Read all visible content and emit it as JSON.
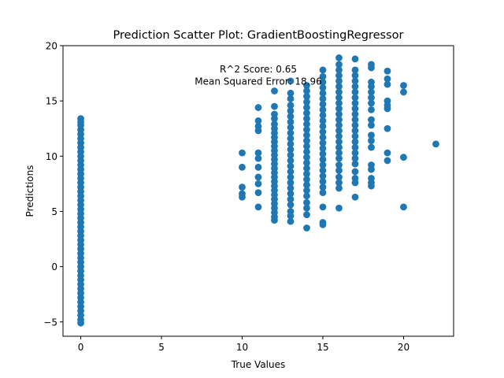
{
  "chart_data": {
    "type": "scatter",
    "title": "Prediction Scatter Plot: GradientBoostingRegressor",
    "xlabel": "True Values",
    "ylabel": "Predictions",
    "xlim": [
      -1.1,
      23.1
    ],
    "ylim": [
      -6.3,
      20.0
    ],
    "xticks": [
      0,
      5,
      10,
      15,
      20
    ],
    "yticks": [
      -5,
      0,
      5,
      10,
      15,
      20
    ],
    "grid": false,
    "legend": "none",
    "marker_color": "#1f77b4",
    "annotations": [
      {
        "text": "R^2 Score: 0.65",
        "x": 11,
        "y": 17.9
      },
      {
        "text": "Mean Squared Error: 18.96",
        "x": 11,
        "y": 16.8
      }
    ],
    "series": [
      {
        "points": [
          [
            0,
            13.4
          ],
          [
            0,
            13.1
          ],
          [
            0,
            12.8
          ],
          [
            0,
            12.4
          ],
          [
            0,
            12.0
          ],
          [
            0,
            11.6
          ],
          [
            0,
            11.2
          ],
          [
            0,
            10.8
          ],
          [
            0,
            10.4
          ],
          [
            0,
            10.0
          ],
          [
            0,
            9.6
          ],
          [
            0,
            9.2
          ],
          [
            0,
            8.8
          ],
          [
            0,
            8.4
          ],
          [
            0,
            8.0
          ],
          [
            0,
            7.6
          ],
          [
            0,
            7.2
          ],
          [
            0,
            6.8
          ],
          [
            0,
            6.4
          ],
          [
            0,
            6.0
          ],
          [
            0,
            5.6
          ],
          [
            0,
            5.2
          ],
          [
            0,
            4.8
          ],
          [
            0,
            4.4
          ],
          [
            0,
            4.0
          ],
          [
            0,
            3.6
          ],
          [
            0,
            3.2
          ],
          [
            0,
            2.8
          ],
          [
            0,
            2.4
          ],
          [
            0,
            2.0
          ],
          [
            0,
            1.6
          ],
          [
            0,
            1.2
          ],
          [
            0,
            0.8
          ],
          [
            0,
            0.4
          ],
          [
            0,
            0.0
          ],
          [
            0,
            -0.4
          ],
          [
            0,
            -0.8
          ],
          [
            0,
            -1.2
          ],
          [
            0,
            -1.6
          ],
          [
            0,
            -2.0
          ],
          [
            0,
            -2.4
          ],
          [
            0,
            -2.8
          ],
          [
            0,
            -3.2
          ],
          [
            0,
            -3.6
          ],
          [
            0,
            -4.0
          ],
          [
            0,
            -4.4
          ],
          [
            0,
            -4.8
          ],
          [
            0,
            -5.1
          ],
          [
            10,
            10.3
          ],
          [
            10,
            9.0
          ],
          [
            10,
            7.2
          ],
          [
            10,
            6.6
          ],
          [
            10,
            6.3
          ],
          [
            11,
            14.4
          ],
          [
            11,
            13.2
          ],
          [
            11,
            12.7
          ],
          [
            11,
            12.3
          ],
          [
            11,
            10.3
          ],
          [
            11,
            9.8
          ],
          [
            11,
            9.0
          ],
          [
            11,
            8.1
          ],
          [
            11,
            7.5
          ],
          [
            11,
            6.7
          ],
          [
            11,
            5.4
          ],
          [
            12,
            15.9
          ],
          [
            12,
            14.5
          ],
          [
            12,
            13.8
          ],
          [
            12,
            13.4
          ],
          [
            12,
            12.9
          ],
          [
            12,
            12.5
          ],
          [
            12,
            12.1
          ],
          [
            12,
            11.7
          ],
          [
            12,
            11.3
          ],
          [
            12,
            10.9
          ],
          [
            12,
            10.5
          ],
          [
            12,
            10.1
          ],
          [
            12,
            9.7
          ],
          [
            12,
            9.3
          ],
          [
            12,
            8.9
          ],
          [
            12,
            8.5
          ],
          [
            12,
            8.1
          ],
          [
            12,
            7.7
          ],
          [
            12,
            7.3
          ],
          [
            12,
            6.9
          ],
          [
            12,
            6.5
          ],
          [
            12,
            6.1
          ],
          [
            12,
            5.7
          ],
          [
            12,
            5.3
          ],
          [
            12,
            4.9
          ],
          [
            12,
            4.5
          ],
          [
            12,
            4.2
          ],
          [
            13,
            16.8
          ],
          [
            13,
            15.7
          ],
          [
            13,
            15.2
          ],
          [
            13,
            14.6
          ],
          [
            13,
            14.1
          ],
          [
            13,
            13.6
          ],
          [
            13,
            13.1
          ],
          [
            13,
            12.6
          ],
          [
            13,
            12.1
          ],
          [
            13,
            11.6
          ],
          [
            13,
            11.1
          ],
          [
            13,
            10.6
          ],
          [
            13,
            10.1
          ],
          [
            13,
            9.6
          ],
          [
            13,
            9.1
          ],
          [
            13,
            8.6
          ],
          [
            13,
            8.1
          ],
          [
            13,
            7.6
          ],
          [
            13,
            7.1
          ],
          [
            13,
            6.6
          ],
          [
            13,
            6.1
          ],
          [
            13,
            5.6
          ],
          [
            13,
            5.0
          ],
          [
            13,
            4.6
          ],
          [
            13,
            4.1
          ],
          [
            14,
            16.4
          ],
          [
            14,
            15.9
          ],
          [
            14,
            15.4
          ],
          [
            14,
            14.9
          ],
          [
            14,
            14.4
          ],
          [
            14,
            13.9
          ],
          [
            14,
            13.4
          ],
          [
            14,
            12.9
          ],
          [
            14,
            12.4
          ],
          [
            14,
            11.9
          ],
          [
            14,
            11.4
          ],
          [
            14,
            10.9
          ],
          [
            14,
            10.4
          ],
          [
            14,
            9.9
          ],
          [
            14,
            9.4
          ],
          [
            14,
            8.9
          ],
          [
            14,
            8.4
          ],
          [
            14,
            7.9
          ],
          [
            14,
            7.4
          ],
          [
            14,
            6.9
          ],
          [
            14,
            6.4
          ],
          [
            14,
            5.8
          ],
          [
            14,
            5.3
          ],
          [
            14,
            4.7
          ],
          [
            14,
            3.5
          ],
          [
            15,
            17.8
          ],
          [
            15,
            17.2
          ],
          [
            15,
            16.7
          ],
          [
            15,
            16.2
          ],
          [
            15,
            15.7
          ],
          [
            15,
            15.2
          ],
          [
            15,
            14.7
          ],
          [
            15,
            14.2
          ],
          [
            15,
            13.7
          ],
          [
            15,
            13.2
          ],
          [
            15,
            12.7
          ],
          [
            15,
            12.2
          ],
          [
            15,
            11.7
          ],
          [
            15,
            11.2
          ],
          [
            15,
            10.7
          ],
          [
            15,
            10.2
          ],
          [
            15,
            9.7
          ],
          [
            15,
            9.2
          ],
          [
            15,
            8.7
          ],
          [
            15,
            8.2
          ],
          [
            15,
            7.7
          ],
          [
            15,
            7.2
          ],
          [
            15,
            6.7
          ],
          [
            15,
            5.4
          ],
          [
            15,
            4.0
          ],
          [
            15,
            3.8
          ],
          [
            16,
            18.9
          ],
          [
            16,
            18.3
          ],
          [
            16,
            17.8
          ],
          [
            16,
            17.3
          ],
          [
            16,
            16.8
          ],
          [
            16,
            16.3
          ],
          [
            16,
            15.8
          ],
          [
            16,
            15.3
          ],
          [
            16,
            14.8
          ],
          [
            16,
            14.3
          ],
          [
            16,
            13.8
          ],
          [
            16,
            13.3
          ],
          [
            16,
            12.8
          ],
          [
            16,
            12.3
          ],
          [
            16,
            11.8
          ],
          [
            16,
            11.3
          ],
          [
            16,
            10.8
          ],
          [
            16,
            10.3
          ],
          [
            16,
            9.8
          ],
          [
            16,
            9.2
          ],
          [
            16,
            8.7
          ],
          [
            16,
            8.1
          ],
          [
            16,
            7.6
          ],
          [
            16,
            7.1
          ],
          [
            16,
            5.3
          ],
          [
            17,
            18.8
          ],
          [
            17,
            17.8
          ],
          [
            17,
            17.3
          ],
          [
            17,
            16.8
          ],
          [
            17,
            16.3
          ],
          [
            17,
            15.8
          ],
          [
            17,
            15.3
          ],
          [
            17,
            14.8
          ],
          [
            17,
            14.3
          ],
          [
            17,
            13.8
          ],
          [
            17,
            13.3
          ],
          [
            17,
            12.8
          ],
          [
            17,
            12.3
          ],
          [
            17,
            11.8
          ],
          [
            17,
            11.3
          ],
          [
            17,
            10.8
          ],
          [
            17,
            10.3
          ],
          [
            17,
            9.8
          ],
          [
            17,
            9.3
          ],
          [
            17,
            8.6
          ],
          [
            17,
            8.0
          ],
          [
            17,
            7.6
          ],
          [
            17,
            6.3
          ],
          [
            18,
            18.3
          ],
          [
            18,
            18.0
          ],
          [
            18,
            16.7
          ],
          [
            18,
            16.3
          ],
          [
            18,
            15.8
          ],
          [
            18,
            15.3
          ],
          [
            18,
            14.8
          ],
          [
            18,
            14.2
          ],
          [
            18,
            13.3
          ],
          [
            18,
            12.8
          ],
          [
            18,
            11.9
          ],
          [
            18,
            11.4
          ],
          [
            18,
            10.8
          ],
          [
            18,
            9.2
          ],
          [
            18,
            8.8
          ],
          [
            18,
            8.0
          ],
          [
            18,
            7.6
          ],
          [
            18,
            7.3
          ],
          [
            19,
            17.7
          ],
          [
            19,
            17.0
          ],
          [
            19,
            16.5
          ],
          [
            19,
            15.0
          ],
          [
            19,
            14.6
          ],
          [
            19,
            14.3
          ],
          [
            19,
            12.5
          ],
          [
            19,
            10.3
          ],
          [
            19,
            9.6
          ],
          [
            20,
            16.4
          ],
          [
            20,
            15.8
          ],
          [
            20,
            9.9
          ],
          [
            20,
            5.4
          ],
          [
            22,
            11.1
          ]
        ]
      }
    ]
  }
}
